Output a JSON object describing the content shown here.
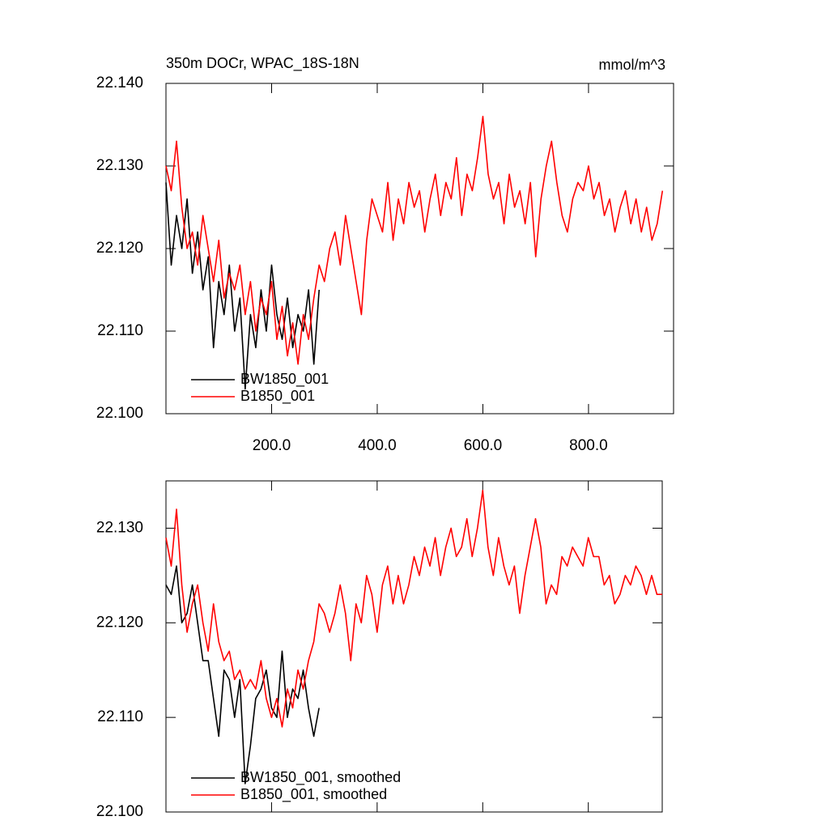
{
  "chart_data": [
    {
      "type": "line",
      "title": "350m DOCr, WPAC_18S-18N",
      "units": "mmol/m^3",
      "xlim": [
        0,
        961
      ],
      "ylim": [
        22.1,
        22.14
      ],
      "xticks": [
        {
          "value": 200,
          "label": "200.0"
        },
        {
          "value": 400,
          "label": "400.0"
        },
        {
          "value": 600,
          "label": "600.0"
        },
        {
          "value": 800,
          "label": "800.0"
        }
      ],
      "yticks": [
        {
          "value": 22.1,
          "label": "22.100"
        },
        {
          "value": 22.11,
          "label": "22.110"
        },
        {
          "value": 22.12,
          "label": "22.120"
        },
        {
          "value": 22.13,
          "label": "22.130"
        },
        {
          "value": 22.14,
          "label": "22.140"
        }
      ],
      "show_xtick_labels": true,
      "legend": "lower left",
      "series": [
        {
          "name": "BW1850_001",
          "color": "#000000",
          "x": [
            0,
            10,
            20,
            30,
            40,
            50,
            60,
            70,
            80,
            90,
            100,
            110,
            120,
            130,
            140,
            150,
            160,
            170,
            180,
            190,
            200,
            210,
            220,
            230,
            240,
            250,
            260,
            270,
            280,
            290
          ],
          "values": [
            22.128,
            22.118,
            22.124,
            22.12,
            22.126,
            22.117,
            22.122,
            22.115,
            22.119,
            22.108,
            22.116,
            22.112,
            22.118,
            22.11,
            22.114,
            22.103,
            22.112,
            22.108,
            22.115,
            22.11,
            22.118,
            22.112,
            22.109,
            22.114,
            22.108,
            22.112,
            22.11,
            22.115,
            22.106,
            22.115
          ]
        },
        {
          "name": "B1850_001",
          "color": "#ff0000",
          "x": [
            0,
            10,
            20,
            30,
            40,
            50,
            60,
            70,
            80,
            90,
            100,
            110,
            120,
            130,
            140,
            150,
            160,
            170,
            180,
            190,
            200,
            210,
            220,
            230,
            240,
            250,
            260,
            270,
            280,
            290,
            300,
            310,
            320,
            330,
            340,
            350,
            360,
            370,
            380,
            390,
            400,
            410,
            420,
            430,
            440,
            450,
            460,
            470,
            480,
            490,
            500,
            510,
            520,
            530,
            540,
            550,
            560,
            570,
            580,
            590,
            600,
            610,
            620,
            630,
            640,
            650,
            660,
            670,
            680,
            690,
            700,
            710,
            720,
            730,
            740,
            750,
            760,
            770,
            780,
            790,
            800,
            810,
            820,
            830,
            840,
            850,
            860,
            870,
            880,
            890,
            900,
            910,
            920,
            930,
            940
          ],
          "values": [
            22.13,
            22.127,
            22.133,
            22.125,
            22.12,
            22.122,
            22.118,
            22.124,
            22.12,
            22.116,
            22.121,
            22.114,
            22.117,
            22.115,
            22.118,
            22.112,
            22.116,
            22.11,
            22.114,
            22.112,
            22.116,
            22.109,
            22.113,
            22.107,
            22.111,
            22.106,
            22.112,
            22.109,
            22.114,
            22.118,
            22.116,
            22.12,
            22.122,
            22.118,
            22.124,
            22.12,
            22.116,
            22.112,
            22.121,
            22.126,
            22.124,
            22.122,
            22.128,
            22.121,
            22.126,
            22.123,
            22.128,
            22.125,
            22.127,
            22.122,
            22.126,
            22.129,
            22.124,
            22.128,
            22.126,
            22.131,
            22.124,
            22.129,
            22.127,
            22.131,
            22.136,
            22.129,
            22.126,
            22.128,
            22.123,
            22.129,
            22.125,
            22.127,
            22.123,
            22.128,
            22.119,
            22.126,
            22.13,
            22.133,
            22.128,
            22.124,
            22.122,
            22.126,
            22.128,
            22.127,
            22.13,
            22.126,
            22.128,
            22.124,
            22.126,
            22.122,
            22.125,
            22.127,
            22.123,
            22.126,
            22.122,
            22.125,
            22.121,
            22.123,
            22.127
          ]
        }
      ]
    },
    {
      "type": "line",
      "xlim": [
        0,
        940
      ],
      "ylim": [
        22.1,
        22.135
      ],
      "xticks": [
        200,
        400,
        600,
        800
      ],
      "yticks": [
        {
          "value": 22.1,
          "label": "22.100"
        },
        {
          "value": 22.11,
          "label": "22.110"
        },
        {
          "value": 22.12,
          "label": "22.120"
        },
        {
          "value": 22.13,
          "label": "22.130"
        }
      ],
      "show_xtick_labels": false,
      "legend": "lower left",
      "series": [
        {
          "name": "BW1850_001, smoothed",
          "color": "#000000",
          "x": [
            0,
            10,
            20,
            30,
            40,
            50,
            60,
            70,
            80,
            90,
            100,
            110,
            120,
            130,
            140,
            150,
            160,
            170,
            180,
            190,
            200,
            210,
            220,
            230,
            240,
            250,
            260,
            270,
            280,
            290
          ],
          "values": [
            22.124,
            22.123,
            22.126,
            22.12,
            22.121,
            22.124,
            22.12,
            22.116,
            22.116,
            22.112,
            22.108,
            22.115,
            22.114,
            22.11,
            22.114,
            22.103,
            22.107,
            22.112,
            22.113,
            22.115,
            22.111,
            22.11,
            22.117,
            22.11,
            22.113,
            22.112,
            22.115,
            22.111,
            22.108,
            22.111
          ]
        },
        {
          "name": "B1850_001, smoothed",
          "color": "#ff0000",
          "x": [
            0,
            10,
            20,
            30,
            40,
            50,
            60,
            70,
            80,
            90,
            100,
            110,
            120,
            130,
            140,
            150,
            160,
            170,
            180,
            190,
            200,
            210,
            220,
            230,
            240,
            250,
            260,
            270,
            280,
            290,
            300,
            310,
            320,
            330,
            340,
            350,
            360,
            370,
            380,
            390,
            400,
            410,
            420,
            430,
            440,
            450,
            460,
            470,
            480,
            490,
            500,
            510,
            520,
            530,
            540,
            550,
            560,
            570,
            580,
            590,
            600,
            610,
            620,
            630,
            640,
            650,
            660,
            670,
            680,
            690,
            700,
            710,
            720,
            730,
            740,
            750,
            760,
            770,
            780,
            790,
            800,
            810,
            820,
            830,
            840,
            850,
            860,
            870,
            880,
            890,
            900,
            910,
            920,
            930,
            940
          ],
          "values": [
            22.129,
            22.126,
            22.132,
            22.124,
            22.119,
            22.122,
            22.124,
            22.12,
            22.117,
            22.122,
            22.118,
            22.116,
            22.117,
            22.114,
            22.115,
            22.113,
            22.114,
            22.113,
            22.116,
            22.112,
            22.11,
            22.112,
            22.109,
            22.113,
            22.111,
            22.115,
            22.113,
            22.116,
            22.118,
            22.122,
            22.121,
            22.119,
            22.121,
            22.124,
            22.121,
            22.116,
            22.122,
            22.12,
            22.125,
            22.123,
            22.119,
            22.124,
            22.126,
            22.122,
            22.125,
            22.122,
            22.124,
            22.127,
            22.125,
            22.128,
            22.126,
            22.129,
            22.125,
            22.128,
            22.13,
            22.127,
            22.128,
            22.131,
            22.127,
            22.13,
            22.134,
            22.128,
            22.125,
            22.129,
            22.126,
            22.124,
            22.126,
            22.121,
            22.125,
            22.128,
            22.131,
            22.128,
            22.122,
            22.124,
            22.123,
            22.127,
            22.126,
            22.128,
            22.127,
            22.126,
            22.129,
            22.127,
            22.127,
            22.124,
            22.125,
            22.122,
            22.123,
            22.125,
            22.124,
            22.126,
            22.125,
            22.123,
            22.125,
            22.123,
            22.123
          ]
        }
      ]
    }
  ]
}
